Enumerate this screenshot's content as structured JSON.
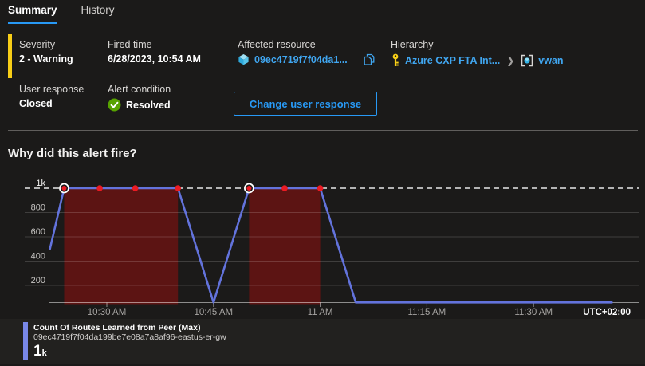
{
  "colors": {
    "accent_blue": "#2899f5",
    "link_blue": "#40a6f0",
    "severity_yellow": "#f8ce17",
    "resolved_green": "#57a300",
    "line_blue": "#6373dc",
    "legend_bar_blue": "#7988e8",
    "violation_red": "#5c1413",
    "marker_red": "#eb1b23",
    "threshold_white": "#e8e8e8",
    "background": "#1b1a19"
  },
  "tabs": {
    "summary": "Summary",
    "history": "History"
  },
  "essentials": {
    "severity_label": "Severity",
    "severity_value": "2 - Warning",
    "fired_time_label": "Fired time",
    "fired_time_value": "6/28/2023, 10:54 AM",
    "affected_resource_label": "Affected resource",
    "affected_resource_value": "09ec4719f7f04da1...",
    "hierarchy_label": "Hierarchy",
    "hierarchy_parent": "Azure CXP FTA Int...",
    "hierarchy_child": "vwan",
    "user_response_label": "User response",
    "user_response_value": "Closed",
    "alert_condition_label": "Alert condition",
    "alert_condition_value": "Resolved",
    "change_button_label": "Change user response"
  },
  "section_heading": "Why did this alert fire?",
  "chart_data": {
    "type": "line",
    "title": "Count Of Routes Learned from Peer (Max)",
    "timezone": "UTC+02:00",
    "grid": true,
    "legend_position": "bottom",
    "ylim": [
      60,
      1100
    ],
    "threshold": {
      "value": 1000,
      "label": "1k",
      "style": "dashed"
    },
    "y_ticks": [
      {
        "label": "1k",
        "v": 1000
      },
      {
        "label": "800",
        "v": 800
      },
      {
        "label": "600",
        "v": 600
      },
      {
        "label": "400",
        "v": 400
      },
      {
        "label": "200",
        "v": 200
      }
    ],
    "x_ticks": [
      {
        "label": "10:30 AM",
        "t": "10:30"
      },
      {
        "label": "10:45 AM",
        "t": "10:45"
      },
      {
        "label": "11 AM",
        "t": "11:00"
      },
      {
        "label": "11:15 AM",
        "t": "11:15"
      },
      {
        "label": "11:30 AM",
        "t": "11:30"
      }
    ],
    "series": [
      {
        "name": "Count Of Routes Learned from Peer (Max)",
        "resource": "09ec4719f7f04da199be7e08a7a8af96-eastus-er-gw",
        "display_value": "1",
        "display_suffix": "k",
        "points": [
          {
            "t": "10:22",
            "v": 500
          },
          {
            "t": "10:24",
            "v": 1000,
            "marker": "ring"
          },
          {
            "t": "10:29",
            "v": 1000,
            "marker": "dot"
          },
          {
            "t": "10:34",
            "v": 1000,
            "marker": "dot"
          },
          {
            "t": "10:40",
            "v": 1000,
            "marker": "dot"
          },
          {
            "t": "10:45",
            "v": 60
          },
          {
            "t": "10:50",
            "v": 1000,
            "marker": "ring"
          },
          {
            "t": "10:55",
            "v": 1000,
            "marker": "dot"
          },
          {
            "t": "11:00",
            "v": 1000,
            "marker": "dot"
          },
          {
            "t": "11:05",
            "v": 60
          },
          {
            "t": "11:41",
            "v": 60
          }
        ]
      }
    ],
    "violation_windows": [
      {
        "start": "10:24",
        "end": "10:40"
      },
      {
        "start": "10:50",
        "end": "11:00"
      }
    ]
  }
}
